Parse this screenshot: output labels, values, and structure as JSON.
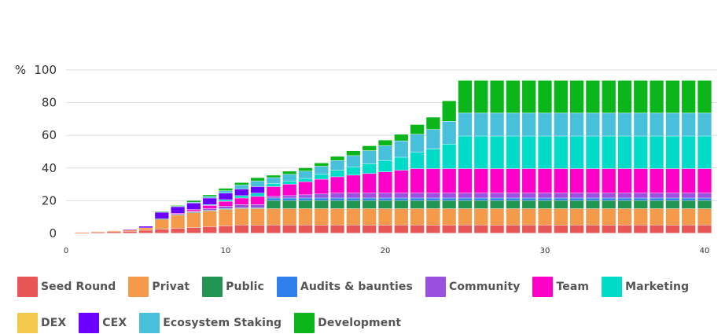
{
  "chart_data": {
    "type": "bar",
    "stacked": true,
    "y_unit": "%",
    "ylim": [
      0,
      100
    ],
    "y_ticks": [
      0,
      20,
      40,
      60,
      80,
      100
    ],
    "xlim": [
      0,
      40
    ],
    "x_ticks": [
      0,
      10,
      20,
      30,
      40
    ],
    "x": [
      1,
      2,
      3,
      4,
      5,
      6,
      7,
      8,
      9,
      10,
      11,
      12,
      13,
      14,
      15,
      16,
      17,
      18,
      19,
      20,
      21,
      22,
      23,
      24,
      25,
      26,
      27,
      28,
      29,
      30,
      31,
      32,
      33,
      34,
      35,
      36,
      37,
      38,
      39,
      40
    ],
    "grid": true,
    "series": [
      {
        "name": "Seed Round",
        "color": "#e95656",
        "values": [
          0.3,
          0.6,
          0.9,
          1.2,
          1.8,
          2.5,
          3,
          3.5,
          4,
          4.5,
          5,
          5,
          5,
          5,
          5,
          5,
          5,
          5,
          5,
          5,
          5,
          5,
          5,
          5,
          5,
          5,
          5,
          5,
          5,
          5,
          5,
          5,
          5,
          5,
          5,
          5,
          5,
          5,
          5,
          5
        ]
      },
      {
        "name": "Privat",
        "color": "#f59a4a",
        "values": [
          0.2,
          0.4,
          0.6,
          0.8,
          1.5,
          6,
          8,
          9,
          9.5,
          10,
          10,
          10,
          10,
          10,
          10,
          10,
          10,
          10,
          10,
          10,
          10,
          10,
          10,
          10,
          10,
          10,
          10,
          10,
          10,
          10,
          10,
          10,
          10,
          10,
          10,
          10,
          10,
          10,
          10,
          10
        ]
      },
      {
        "name": "Public",
        "color": "#219653",
        "values": [
          0,
          0,
          0,
          0,
          0,
          0.3,
          0.5,
          0.5,
          0.5,
          0.5,
          0.5,
          0.5,
          5,
          5,
          5,
          5,
          5,
          5,
          5,
          5,
          5,
          5,
          5,
          5,
          5,
          5,
          5,
          5,
          5,
          5,
          5,
          5,
          5,
          5,
          5,
          5,
          5,
          5,
          5,
          5
        ]
      },
      {
        "name": "Audits & baunties",
        "color": "#2f80ed",
        "values": [
          0,
          0,
          0,
          0,
          0,
          0,
          0,
          0,
          0,
          0,
          0,
          0,
          1.5,
          1.5,
          1.5,
          1.5,
          1.5,
          1.5,
          1.5,
          1.5,
          1.5,
          1.5,
          1.5,
          1.5,
          1.5,
          1.5,
          1.5,
          1.5,
          1.5,
          1.5,
          1.5,
          1.5,
          1.5,
          1.5,
          1.5,
          1.5,
          1.5,
          1.5,
          1.5,
          1.5
        ]
      },
      {
        "name": "Community",
        "color": "#9b51e0",
        "values": [
          0,
          0,
          0,
          0,
          0,
          0,
          0.2,
          0.5,
          1,
          1.5,
          2,
          2,
          1,
          1.5,
          2,
          2.5,
          3,
          3,
          3,
          3,
          3,
          3,
          3,
          3,
          3,
          3,
          3,
          3,
          3,
          3,
          3,
          3,
          3,
          3,
          3,
          3,
          3,
          3,
          3,
          3
        ]
      },
      {
        "name": "Team",
        "color": "#ff00c8",
        "values": [
          0,
          0,
          0,
          0,
          0,
          0,
          0.5,
          1,
          2,
          3,
          4,
          5,
          6,
          7,
          8,
          9,
          10,
          11,
          12,
          13,
          14,
          15,
          15,
          15,
          15,
          15,
          15,
          15,
          15,
          15,
          15,
          15,
          15,
          15,
          15,
          15,
          15,
          15,
          15,
          15
        ]
      },
      {
        "name": "Marketing",
        "color": "#00dcc8",
        "values": [
          0,
          0,
          0,
          0,
          0,
          0,
          0,
          0,
          0.5,
          1,
          1.5,
          2,
          2,
          2,
          2,
          3,
          4,
          5,
          6,
          7,
          8,
          10,
          12,
          15,
          20,
          20,
          20,
          20,
          20,
          20,
          20,
          20,
          20,
          20,
          20,
          20,
          20,
          20,
          20,
          20
        ]
      },
      {
        "name": "DEX",
        "color": "#f2c94c",
        "values": [
          0,
          0,
          0,
          0,
          0,
          0,
          0,
          0,
          0,
          0,
          0,
          0,
          0,
          0,
          0,
          0,
          0,
          0,
          0,
          0,
          0,
          0,
          0,
          0,
          0,
          0,
          0,
          0,
          0,
          0,
          0,
          0,
          0,
          0,
          0,
          0,
          0,
          0,
          0,
          0
        ]
      },
      {
        "name": "CEX",
        "color": "#6a00ff",
        "values": [
          0,
          0,
          0,
          0.3,
          1,
          4,
          4,
          4,
          4,
          4,
          4,
          4,
          0,
          0,
          0,
          0,
          0,
          0,
          0,
          0,
          0,
          0,
          0,
          0,
          0,
          0,
          0,
          0,
          0,
          0,
          0,
          0,
          0,
          0,
          0,
          0,
          0,
          0,
          0,
          0
        ]
      },
      {
        "name": "Ecosystem Staking",
        "color": "#48c0dc",
        "values": [
          0,
          0,
          0,
          0,
          0,
          0,
          0.3,
          0.5,
          1,
          1.5,
          2.5,
          3.5,
          3.5,
          4,
          4.5,
          5,
          6,
          7,
          8,
          9,
          10,
          11,
          12,
          14,
          14,
          14,
          14,
          14,
          14,
          14,
          14,
          14,
          14,
          14,
          14,
          14,
          14,
          14,
          14,
          14
        ]
      },
      {
        "name": "Development",
        "color": "#0ab61a",
        "values": [
          0,
          0,
          0,
          0,
          0,
          0.5,
          0.5,
          1,
          1,
          1.5,
          1.5,
          2,
          1.5,
          2,
          2,
          2,
          2.5,
          3,
          3,
          3.5,
          4,
          6,
          7.5,
          12.5,
          20,
          20,
          20,
          20,
          20,
          20,
          20,
          20,
          20,
          20,
          20,
          20,
          20,
          20,
          20,
          20
        ]
      }
    ]
  },
  "legend_rows": [
    [
      "Seed Round",
      "Privat",
      "Public",
      "Audits & baunties",
      "Community",
      "Team",
      "Marketing"
    ],
    [
      "DEX",
      "CEX",
      "Ecosystem Staking",
      "Development"
    ]
  ]
}
